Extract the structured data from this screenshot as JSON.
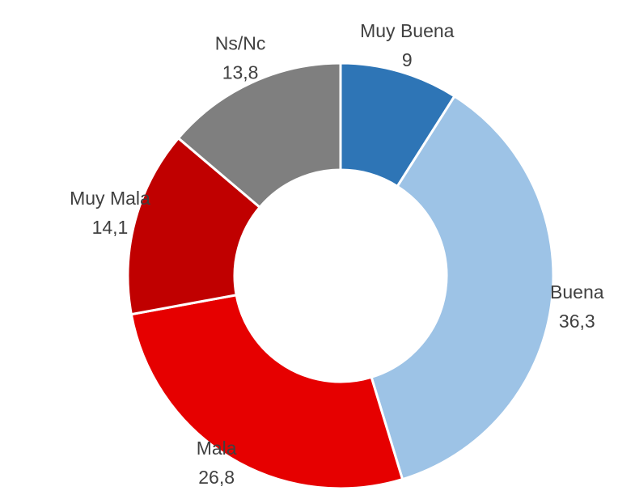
{
  "chart_data": {
    "type": "donut",
    "categories": [
      "Muy Buena",
      "Buena",
      "Mala",
      "Muy Mala",
      "Ns/Nc"
    ],
    "values": [
      9,
      36.3,
      26.8,
      14.1,
      13.8
    ],
    "value_labels": [
      "9",
      "36,3",
      "26,8",
      "14,1",
      "13,8"
    ],
    "colors": [
      "#2e75b6",
      "#9dc3e6",
      "#e60000",
      "#c00000",
      "#7f7f7f"
    ]
  }
}
